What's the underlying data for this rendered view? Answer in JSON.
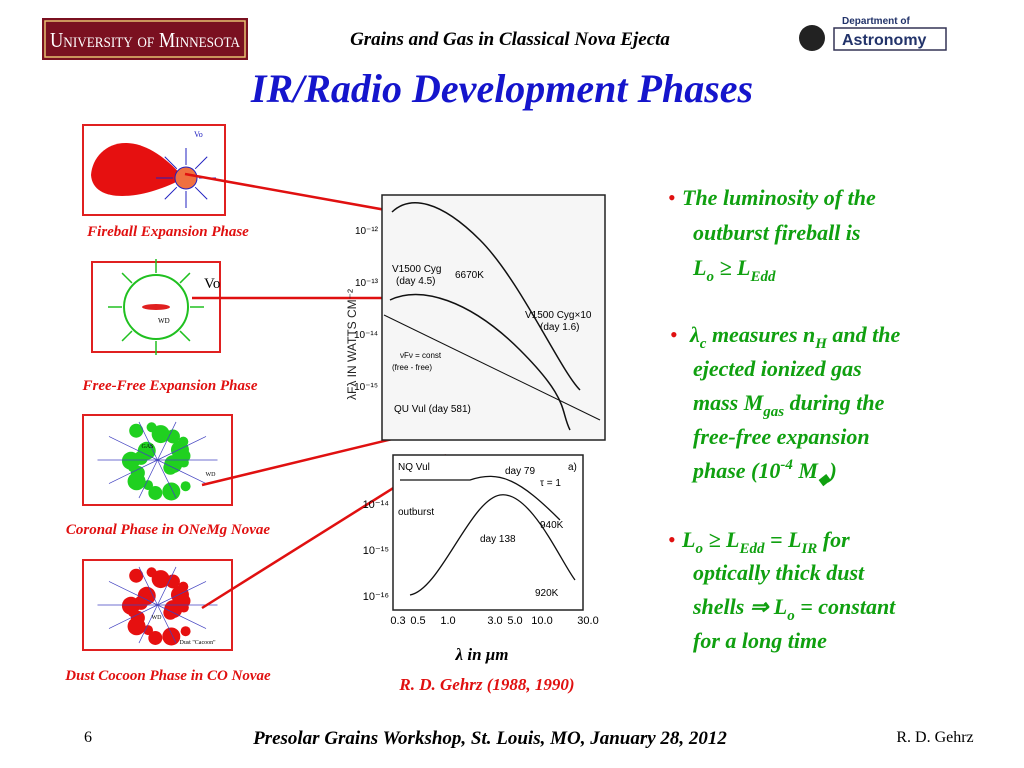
{
  "header": {
    "university": "University of Minnesota",
    "slide_title": "Grains and Gas in Classical Nova Ejecta",
    "dept_line1": "Department of",
    "dept_line2": "Astronomy"
  },
  "title": "IR/Radio Development  Phases",
  "phases": [
    {
      "label": "Fireball Expansion Phase",
      "note": "Vo"
    },
    {
      "label": "Free-Free Expansion Phase",
      "note": "Vo",
      "note2": "WD"
    },
    {
      "label": "Coronal Phase in ONeMg Novae",
      "note": "GAS",
      "note2": "WD"
    },
    {
      "label": "Dust Cocoon Phase in CO Novae",
      "note": "WD",
      "note2": "Dust \"Cacoon\""
    }
  ],
  "figure": {
    "upper_ylabel": "λFλ IN WATTS CM⁻²",
    "upper_ticks": [
      "10⁻¹²",
      "10⁻¹³",
      "10⁻¹⁴",
      "10⁻¹⁵"
    ],
    "upper_texts": [
      "V1500 Cyg",
      "(day 4.5)",
      "6670K",
      "V1500 Cyg×10",
      "(day 1.6)",
      "νFν = const",
      "(free - free)",
      "QU Vul (day 581)"
    ],
    "lower_ticks": [
      "10⁻¹⁴",
      "10⁻¹⁵",
      "10⁻¹⁶"
    ],
    "lower_texts": [
      "NQ Vul",
      "day 79",
      "a)",
      "τ = 1",
      "outburst",
      "940K",
      "day 138",
      "920K"
    ],
    "xticks": [
      "0.3",
      "0.5",
      "1.0",
      "3.0",
      "5.0",
      "10.0",
      "30.0"
    ],
    "xlabel": "λ in  μm",
    "credit": "R. D. Gehrz  (1988, 1990)"
  },
  "bullet": "•",
  "bullets": [
    [
      [
        {
          "t": "The luminosity of the"
        }
      ],
      [
        {
          "t": "outburst fireball is"
        }
      ],
      [
        {
          "t": "L"
        },
        {
          "t": "o",
          "s": "sub"
        },
        {
          "t": " ≥ L"
        },
        {
          "t": "Edd",
          "s": "sub"
        }
      ]
    ],
    [
      [
        {
          "t": "λ"
        },
        {
          "t": "c",
          "s": "sub"
        },
        {
          "t": " measures n"
        },
        {
          "t": "H",
          "s": "sub"
        },
        {
          "t": " and the"
        }
      ],
      [
        {
          "t": "ejected ionized gas"
        }
      ],
      [
        {
          "t": "mass M"
        },
        {
          "t": "gas",
          "s": "sub"
        },
        {
          "t": " during the"
        }
      ],
      [
        {
          "t": "free-free expansion"
        }
      ],
      [
        {
          "t": "phase (10"
        },
        {
          "t": "-4",
          "s": "sup"
        },
        {
          "t": " M"
        },
        {
          "t": "◆",
          "s": "sub"
        },
        {
          "t": ")"
        }
      ]
    ],
    [
      [
        {
          "t": "L"
        },
        {
          "t": "o",
          "s": "sub"
        },
        {
          "t": " ≥ L"
        },
        {
          "t": "Edd",
          "s": "sub"
        },
        {
          "t": " = L"
        },
        {
          "t": "IR",
          "s": "sub"
        },
        {
          "t": "  for"
        }
      ],
      [
        {
          "t": "optically thick dust"
        }
      ],
      [
        {
          "t": "shells ⇒ L"
        },
        {
          "t": "o",
          "s": "sub"
        },
        {
          "t": "  = constant"
        }
      ],
      [
        {
          "t": "for a long time"
        }
      ]
    ]
  ],
  "footer": {
    "page": "6",
    "event": "Presolar Grains Workshop, St. Louis, MO, January 28, 2012",
    "author": "R. D. Gehrz"
  }
}
